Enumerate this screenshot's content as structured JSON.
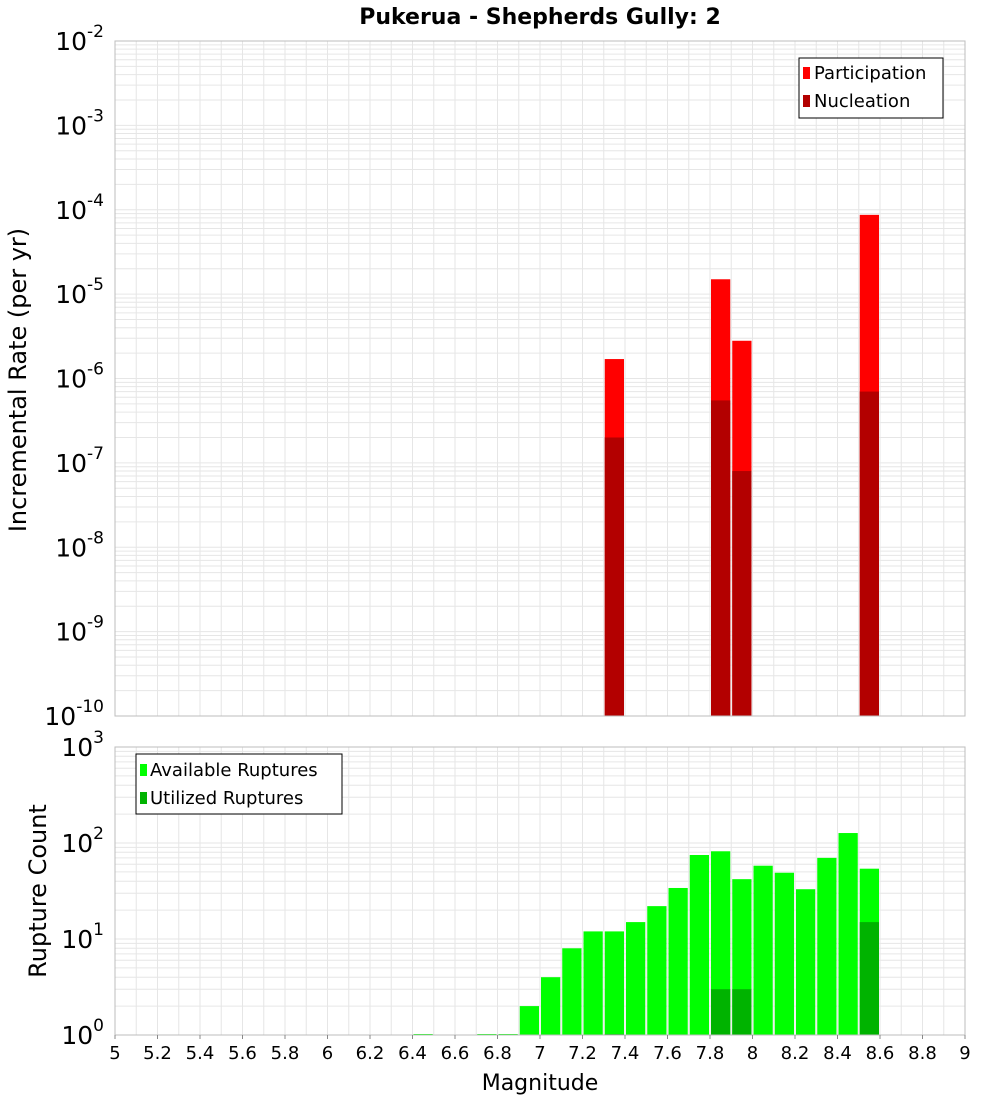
{
  "chart_data": [
    {
      "id": "rate-panel",
      "type": "bar",
      "title": "Pukerua - Shepherds Gully: 2",
      "ylabel": "Incremental Rate (per yr)",
      "yscale": "log",
      "ylim_exp": [
        -10,
        -2
      ],
      "xlim": [
        5,
        9
      ],
      "bin_width": 0.1,
      "legend_position": "top-right",
      "series": [
        {
          "name": "Participation",
          "color": "#ff0000",
          "points": [
            {
              "x": 7.35,
              "y": 1.7e-06
            },
            {
              "x": 7.85,
              "y": 1.5e-05
            },
            {
              "x": 7.95,
              "y": 2.8e-06
            },
            {
              "x": 8.55,
              "y": 8.7e-05
            }
          ]
        },
        {
          "name": "Nucleation",
          "color": "#b30000",
          "points": [
            {
              "x": 7.35,
              "y": 2e-07
            },
            {
              "x": 7.85,
              "y": 5.5e-07
            },
            {
              "x": 7.95,
              "y": 8e-08
            },
            {
              "x": 8.55,
              "y": 7e-07
            }
          ]
        }
      ]
    },
    {
      "id": "count-panel",
      "type": "bar",
      "ylabel": "Rupture Count",
      "xlabel": "Magnitude",
      "yscale": "log",
      "ylim_exp": [
        0,
        3
      ],
      "xlim": [
        5,
        9
      ],
      "bin_width": 0.1,
      "legend_position": "top-left",
      "series": [
        {
          "name": "Available Ruptures",
          "color": "#00ff00",
          "points": [
            {
              "x": 6.45,
              "y": 1
            },
            {
              "x": 6.75,
              "y": 1
            },
            {
              "x": 6.85,
              "y": 1
            },
            {
              "x": 6.95,
              "y": 2
            },
            {
              "x": 7.05,
              "y": 4
            },
            {
              "x": 7.15,
              "y": 8
            },
            {
              "x": 7.25,
              "y": 12
            },
            {
              "x": 7.35,
              "y": 12
            },
            {
              "x": 7.45,
              "y": 15
            },
            {
              "x": 7.55,
              "y": 22
            },
            {
              "x": 7.65,
              "y": 34
            },
            {
              "x": 7.75,
              "y": 75
            },
            {
              "x": 7.85,
              "y": 82
            },
            {
              "x": 7.95,
              "y": 42
            },
            {
              "x": 8.05,
              "y": 58
            },
            {
              "x": 8.15,
              "y": 49
            },
            {
              "x": 8.25,
              "y": 33
            },
            {
              "x": 8.35,
              "y": 70
            },
            {
              "x": 8.45,
              "y": 127
            },
            {
              "x": 8.55,
              "y": 54
            }
          ]
        },
        {
          "name": "Utilized Ruptures",
          "color": "#00b300",
          "points": [
            {
              "x": 7.35,
              "y": 1
            },
            {
              "x": 7.85,
              "y": 3
            },
            {
              "x": 7.95,
              "y": 3
            },
            {
              "x": 8.55,
              "y": 15
            }
          ]
        }
      ]
    }
  ],
  "x_ticks": [
    "5",
    "5.2",
    "5.4",
    "5.6",
    "5.8",
    "6",
    "6.2",
    "6.4",
    "6.6",
    "6.8",
    "7",
    "7.2",
    "7.4",
    "7.6",
    "7.8",
    "8",
    "8.2",
    "8.4",
    "8.6",
    "8.8",
    "9"
  ],
  "rate_panel_y_ticks": {
    "base": "10",
    "exponents": [
      "-10",
      "-9",
      "-8",
      "-7",
      "-6",
      "-5",
      "-4",
      "-3",
      "-2"
    ]
  },
  "count_panel_y_ticks": {
    "base": "10",
    "exponents": [
      "0",
      "1",
      "2",
      "3"
    ]
  },
  "colors": {
    "grid": "#e6e6e6",
    "frame": "#bdbdbd",
    "legend_border": "#000000"
  }
}
